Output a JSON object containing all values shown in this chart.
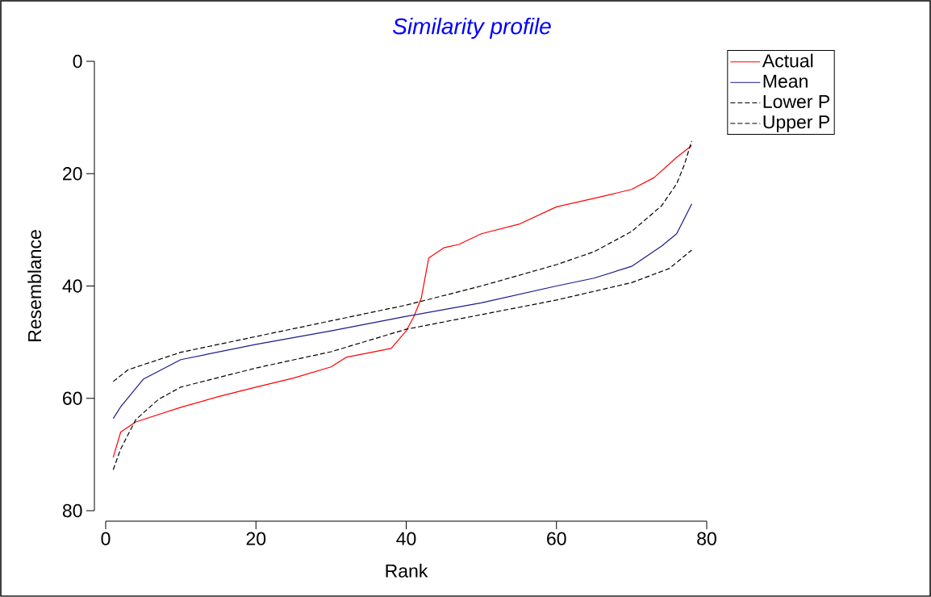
{
  "chart_data": {
    "type": "line",
    "title": "*Similarity profile*",
    "xlabel": "Rank",
    "ylabel": "Resemblance",
    "xlim": [
      0,
      80
    ],
    "ylim": [
      80,
      0
    ],
    "xticks": [
      0,
      20,
      40,
      60,
      80
    ],
    "yticks": [
      0,
      20,
      40,
      60,
      80
    ],
    "legend": "top right",
    "series": [
      {
        "name": "Actual",
        "color": "#ff0000",
        "line_style": "solid",
        "x": [
          1,
          2,
          4,
          10,
          15,
          20,
          25,
          30,
          32,
          38,
          40,
          41,
          42,
          43,
          45,
          47,
          50,
          55,
          60,
          65,
          70,
          73,
          76,
          78
        ],
        "values": [
          70.5,
          66,
          64.2,
          61.6,
          59.7,
          58,
          56.4,
          54.4,
          52.7,
          51.1,
          48,
          45.5,
          42.2,
          35,
          33.2,
          32.6,
          30.7,
          29,
          25.9,
          24.4,
          22.8,
          20.7,
          17.1,
          15
        ]
      },
      {
        "name": "Mean",
        "color": "#1a1a8c",
        "line_style": "solid",
        "x": [
          1,
          2,
          5,
          10,
          20,
          30,
          40,
          50,
          60,
          65,
          70,
          74,
          76,
          78
        ],
        "values": [
          63.6,
          61.5,
          56.6,
          53.1,
          50.4,
          48,
          45.4,
          43,
          40,
          38.6,
          36.5,
          32.9,
          30.7,
          25.4
        ]
      },
      {
        "name": "Lower P",
        "color": "#000000",
        "line_style": "dashed",
        "x": [
          1,
          3,
          10,
          20,
          30,
          40,
          50,
          60,
          65,
          70,
          74,
          76,
          77,
          78
        ],
        "values": [
          57,
          54.9,
          51.8,
          49,
          46.2,
          43.4,
          40,
          36.2,
          33.9,
          30.3,
          25.7,
          21.8,
          18.5,
          14.2
        ]
      },
      {
        "name": "Upper P",
        "color": "#000000",
        "line_style": "dashed",
        "x": [
          1,
          2,
          4,
          7,
          10,
          20,
          30,
          40,
          50,
          60,
          70,
          75,
          78
        ],
        "values": [
          72.7,
          69,
          63.8,
          60.2,
          58,
          54.6,
          51.7,
          47.7,
          45.1,
          42.5,
          39.4,
          36.9,
          33.6
        ]
      }
    ]
  }
}
